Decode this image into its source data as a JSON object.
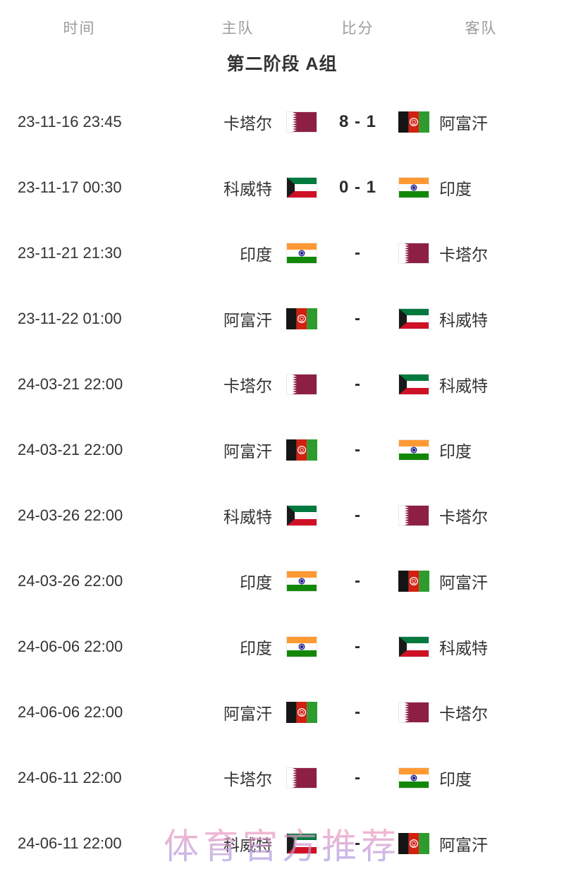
{
  "table": {
    "headers": {
      "time": "时间",
      "home": "主队",
      "score": "比分",
      "away": "客队"
    },
    "group_title": "第二阶段 A组",
    "rows": [
      {
        "time": "23-11-16 23:45",
        "home": "卡塔尔",
        "home_flag": "qatar",
        "score": "8 - 1",
        "away": "阿富汗",
        "away_flag": "afghanistan"
      },
      {
        "time": "23-11-17 00:30",
        "home": "科威特",
        "home_flag": "kuwait",
        "score": "0 - 1",
        "away": "印度",
        "away_flag": "india"
      },
      {
        "time": "23-11-21 21:30",
        "home": "印度",
        "home_flag": "india",
        "score": "-",
        "away": "卡塔尔",
        "away_flag": "qatar"
      },
      {
        "time": "23-11-22 01:00",
        "home": "阿富汗",
        "home_flag": "afghanistan",
        "score": "-",
        "away": "科威特",
        "away_flag": "kuwait"
      },
      {
        "time": "24-03-21 22:00",
        "home": "卡塔尔",
        "home_flag": "qatar",
        "score": "-",
        "away": "科威特",
        "away_flag": "kuwait"
      },
      {
        "time": "24-03-21 22:00",
        "home": "阿富汗",
        "home_flag": "afghanistan",
        "score": "-",
        "away": "印度",
        "away_flag": "india"
      },
      {
        "time": "24-03-26 22:00",
        "home": "科威特",
        "home_flag": "kuwait",
        "score": "-",
        "away": "卡塔尔",
        "away_flag": "qatar"
      },
      {
        "time": "24-03-26 22:00",
        "home": "印度",
        "home_flag": "india",
        "score": "-",
        "away": "阿富汗",
        "away_flag": "afghanistan"
      },
      {
        "time": "24-06-06 22:00",
        "home": "印度",
        "home_flag": "india",
        "score": "-",
        "away": "科威特",
        "away_flag": "kuwait"
      },
      {
        "time": "24-06-06 22:00",
        "home": "阿富汗",
        "home_flag": "afghanistan",
        "score": "-",
        "away": "卡塔尔",
        "away_flag": "qatar"
      },
      {
        "time": "24-06-11 22:00",
        "home": "卡塔尔",
        "home_flag": "qatar",
        "score": "-",
        "away": "印度",
        "away_flag": "india"
      },
      {
        "time": "24-06-11 22:00",
        "home": "科威特",
        "home_flag": "kuwait",
        "score": "-",
        "away": "阿富汗",
        "away_flag": "afghanistan"
      }
    ]
  },
  "watermark": {
    "text": "体育官方推荐"
  },
  "colors": {
    "header_text": "#9c9c9c",
    "body_text": "#333333",
    "score_text": "#2b2b2b",
    "watermark_pink": "#f499bc",
    "watermark_purple": "#a394e0",
    "qatar_maroon": "#8e1f44",
    "kuwait_green": "#007a3d",
    "kuwait_red": "#ce1126",
    "kuwait_black": "#1a1a1a",
    "india_saffron": "#ff9933",
    "india_green": "#138808",
    "india_navy": "#000080",
    "afghan_black": "#151515",
    "afghan_red": "#d32011",
    "afghan_green": "#2d9b2d",
    "flag_edge": "#e8e8e8"
  }
}
